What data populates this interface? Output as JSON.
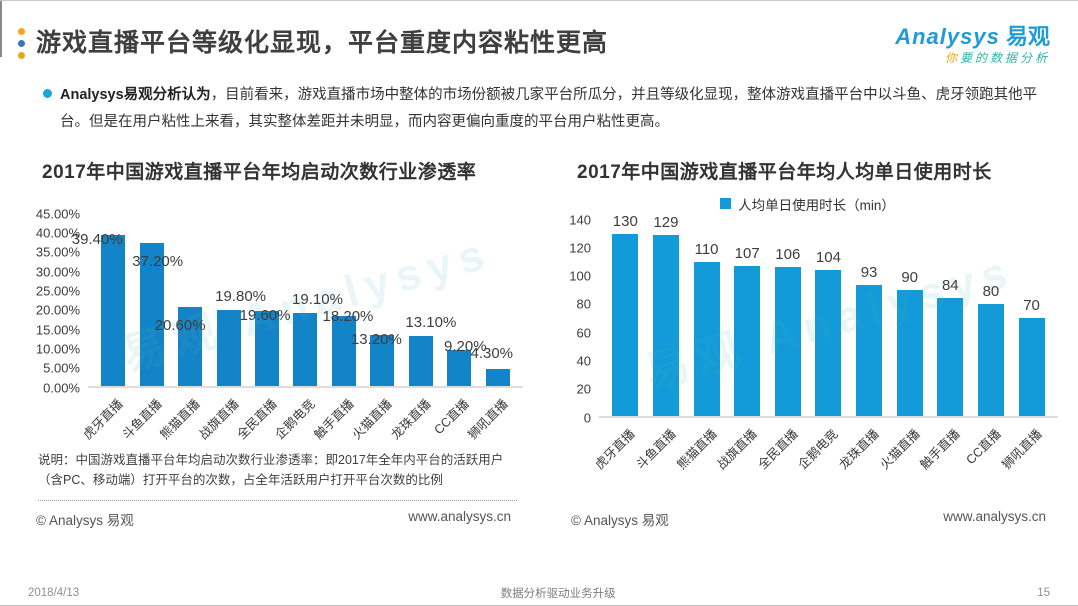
{
  "header": {
    "title": "游戏直播平台等级化显现，平台重度内容粘性更高",
    "dot_colors": [
      "#f6a623",
      "#3579b8",
      "#e3a918"
    ],
    "logo": {
      "brand_en": "Analysys",
      "brand_cn": "易观",
      "tagline_first": "你",
      "tagline_rest": "要的数据分析"
    }
  },
  "summary": {
    "lead": "Analysys易观分析认为",
    "body": "，目前看来，游戏直播市场中整体的市场份额被几家平台所瓜分，并且等级化显现，整体游戏直播平台中以斗鱼、虎牙领跑其他平台。但是在用户粘性上来看，其实整体差距并未明显，而内容更偏向重度的平台用户粘性更高。"
  },
  "watermark": "易观 Analysys",
  "chart_data": [
    {
      "type": "bar",
      "title": "2017年中国游戏直播平台年均启动次数行业渗透率",
      "categories": [
        "虎牙直播",
        "斗鱼直播",
        "熊猫直播",
        "战旗直播",
        "全民直播",
        "企鹅电竞",
        "触手直播",
        "火猫直播",
        "龙珠直播",
        "CC直播",
        "狮吼直播"
      ],
      "values": [
        39.4,
        37.2,
        20.6,
        19.8,
        19.6,
        19.1,
        18.2,
        13.2,
        13.1,
        9.2,
        4.3
      ],
      "value_labels": [
        "39.40%",
        "37.20%",
        "20.60%",
        "19.80%",
        "19.60%",
        "19.10%",
        "18.20%",
        "13.20%",
        "13.10%",
        "9.20%",
        "4.30%"
      ],
      "xlabel": "",
      "ylabel": "",
      "ylim": [
        0,
        45
      ],
      "yticks": [
        "45.00%",
        "40.00%",
        "35.00%",
        "30.00%",
        "25.00%",
        "20.00%",
        "15.00%",
        "10.00%",
        "5.00%",
        "0.00%"
      ],
      "grid": "off",
      "bar_color": "#1484c8",
      "footnote": "说明：中国游戏直播平台年均启动次数行业渗透率：即2017年全年内平台的活跃用户（含PC、移动端）打开平台的次数，占全年活跃用户打开平台次数的比例",
      "copyright": "© Analysys 易观",
      "website": "www.analysys.cn"
    },
    {
      "type": "bar",
      "title": "2017年中国游戏直播平台年均人均单日使用时长",
      "legend": "人均单日使用时长（min）",
      "legend_position": "top",
      "categories": [
        "虎牙直播",
        "斗鱼直播",
        "熊猫直播",
        "战旗直播",
        "全民直播",
        "企鹅电竞",
        "龙珠直播",
        "火猫直播",
        "触手直播",
        "CC直播",
        "狮吼直播"
      ],
      "values": [
        130,
        129,
        110,
        107,
        106,
        104,
        93,
        90,
        84,
        80,
        70
      ],
      "value_labels": [
        "130",
        "129",
        "110",
        "107",
        "106",
        "104",
        "93",
        "90",
        "84",
        "80",
        "70"
      ],
      "xlabel": "",
      "ylabel": "",
      "ylim": [
        0,
        140
      ],
      "yticks": [
        "140",
        "120",
        "100",
        "80",
        "60",
        "40",
        "20",
        "0"
      ],
      "grid": "off",
      "bar_color": "#129bd8",
      "copyright": "© Analysys 易观",
      "website": "www.analysys.cn"
    }
  ],
  "footer": {
    "date": "2018/4/13",
    "center": "数据分析驱动业务升级",
    "page": "15"
  }
}
